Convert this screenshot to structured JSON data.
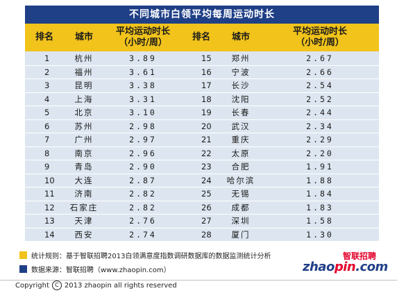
{
  "title": "不同城市白领平均每周运动时长",
  "headers": {
    "rank": "排名",
    "city": "城市",
    "hours_line1": "平均运动时长",
    "hours_line2": "（小时/周）"
  },
  "chart_data": {
    "type": "table",
    "title": "不同城市白领平均每周运动时长",
    "columns": [
      "排名",
      "城市",
      "平均运动时长（小时/周）"
    ],
    "rows": [
      {
        "rank": "1",
        "city": "杭州",
        "hours": "3.89"
      },
      {
        "rank": "2",
        "city": "福州",
        "hours": "3.61"
      },
      {
        "rank": "3",
        "city": "昆明",
        "hours": "3.38"
      },
      {
        "rank": "4",
        "city": "上海",
        "hours": "3.31"
      },
      {
        "rank": "5",
        "city": "北京",
        "hours": "3.10"
      },
      {
        "rank": "6",
        "city": "苏州",
        "hours": "2.98"
      },
      {
        "rank": "7",
        "city": "广州",
        "hours": "2.97"
      },
      {
        "rank": "8",
        "city": "南京",
        "hours": "2.96"
      },
      {
        "rank": "9",
        "city": "青岛",
        "hours": "2.90"
      },
      {
        "rank": "10",
        "city": "大连",
        "hours": "2.87"
      },
      {
        "rank": "11",
        "city": "济南",
        "hours": "2.82"
      },
      {
        "rank": "12",
        "city": "石家庄",
        "hours": "2.82"
      },
      {
        "rank": "13",
        "city": "天津",
        "hours": "2.76"
      },
      {
        "rank": "14",
        "city": "西安",
        "hours": "2.74"
      },
      {
        "rank": "15",
        "city": "郑州",
        "hours": "2.67"
      },
      {
        "rank": "16",
        "city": "宁波",
        "hours": "2.66"
      },
      {
        "rank": "17",
        "city": "长沙",
        "hours": "2.54"
      },
      {
        "rank": "18",
        "city": "沈阳",
        "hours": "2.52"
      },
      {
        "rank": "19",
        "city": "长春",
        "hours": "2.44"
      },
      {
        "rank": "20",
        "city": "武汉",
        "hours": "2.34"
      },
      {
        "rank": "21",
        "city": "重庆",
        "hours": "2.29"
      },
      {
        "rank": "22",
        "city": "太原",
        "hours": "2.20"
      },
      {
        "rank": "23",
        "city": "合肥",
        "hours": "1.91"
      },
      {
        "rank": "24",
        "city": "哈尔滨",
        "hours": "1.88"
      },
      {
        "rank": "25",
        "city": "无锡",
        "hours": "1.84"
      },
      {
        "rank": "26",
        "city": "成都",
        "hours": "1.83"
      },
      {
        "rank": "27",
        "city": "深圳",
        "hours": "1.58"
      },
      {
        "rank": "28",
        "city": "厦门",
        "hours": "1.30"
      }
    ]
  },
  "notes": {
    "method": "统计规则：基于智联招聘2013白领满意度指数调研数据库的数据监测统计分析",
    "source": "数据来源：智联招聘（www.zhaopin.com）"
  },
  "logo": {
    "cn": "智联招聘",
    "en_prefix": "zhao",
    "en_dot": "pin",
    "en_suffix": ".com"
  },
  "copyright": {
    "prefix": "Copyright",
    "symbol": "C",
    "text": "2013 zhaopin all rights  reserved"
  },
  "colors": {
    "title_bg": "#1f3f87",
    "header_bg": "#f1c31b",
    "row_bg": "#dde6f0"
  }
}
